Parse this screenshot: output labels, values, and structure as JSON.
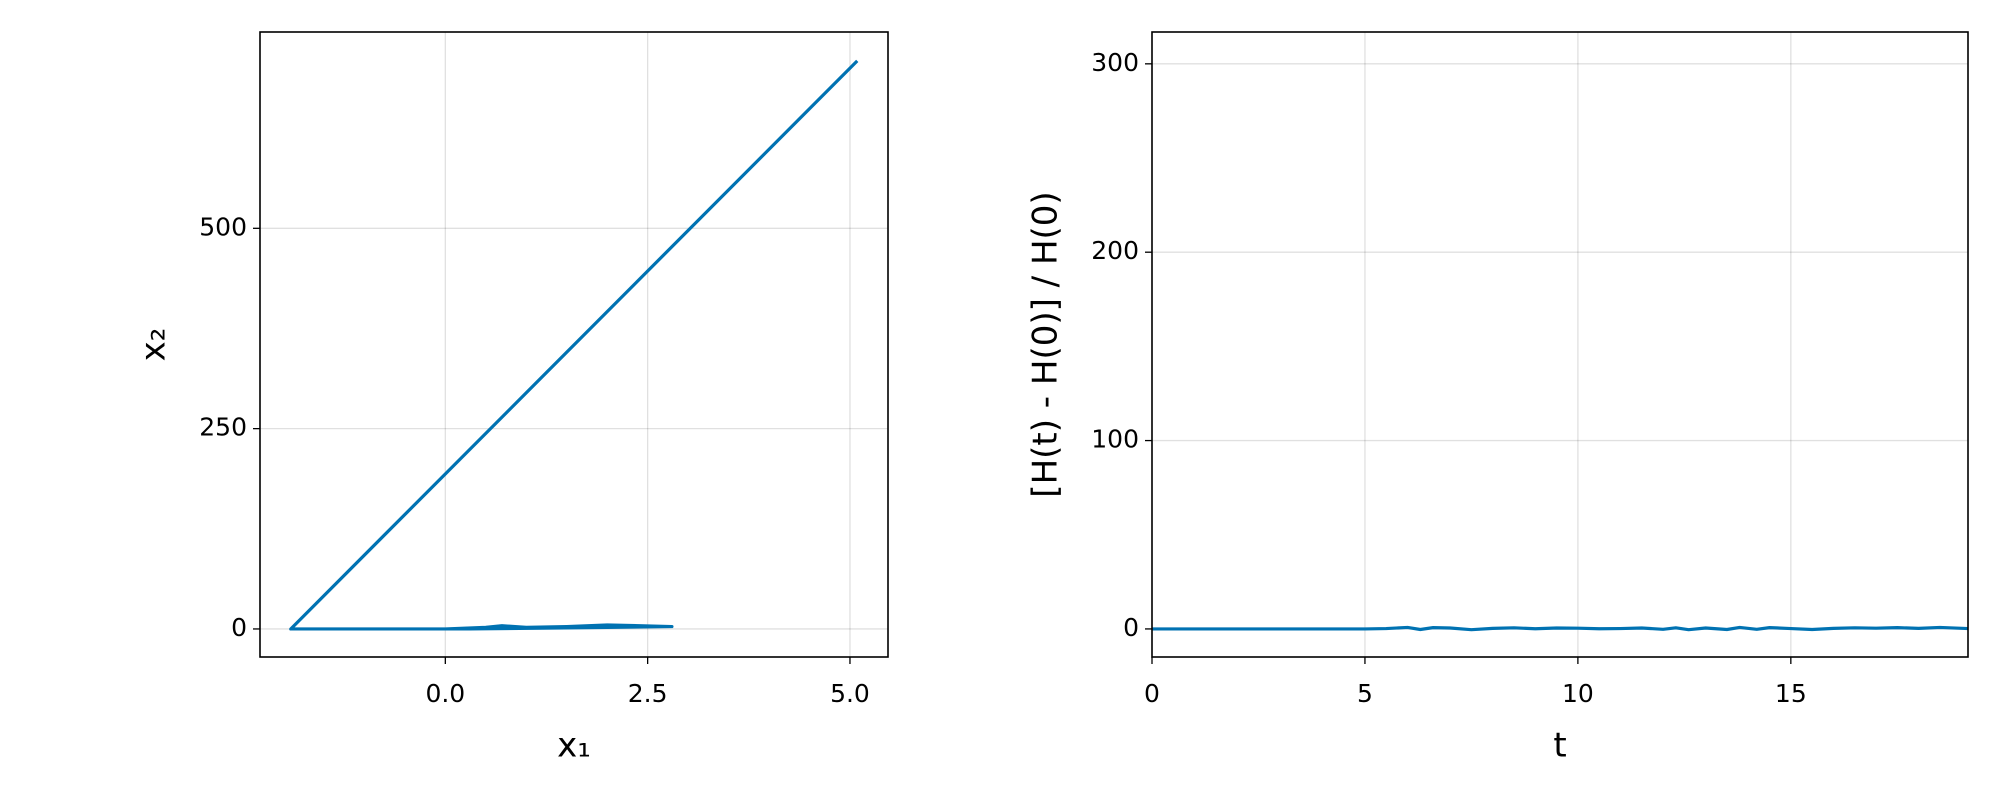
{
  "chart_data": [
    {
      "type": "line",
      "xlabel": "x₁",
      "ylabel": "x₂",
      "color": "#0072b2",
      "x": [
        0,
        0.5,
        0.7,
        1.0,
        1.5,
        2.0,
        2.8,
        2.0,
        1.2,
        0.3,
        -1.91,
        5.09
      ],
      "values": [
        0,
        2,
        4,
        2,
        3,
        5,
        3,
        2,
        1,
        0,
        0,
        709
      ],
      "xlim": [
        -2.29,
        5.47
      ],
      "ylim": [
        -35,
        745
      ],
      "xticks": [
        {
          "value": 0,
          "label": "0.0"
        },
        2.5,
        {
          "value": 5,
          "label": "5.0"
        }
      ],
      "yticks": [
        0,
        250,
        500
      ],
      "grid": true
    },
    {
      "type": "line",
      "xlabel": "t",
      "ylabel": "[H(t) - H(0)] / H(0)",
      "color": "#0072b2",
      "x": [
        0,
        1,
        2,
        3,
        4,
        5,
        5.5,
        6,
        6.3,
        6.6,
        7,
        7.5,
        8,
        8.5,
        9,
        9.5,
        10,
        10.5,
        11,
        11.5,
        12,
        12.3,
        12.6,
        13,
        13.5,
        13.8,
        14.2,
        14.5,
        15,
        15.5,
        16,
        16.5,
        17,
        17.5,
        18,
        18.5,
        19.16
      ],
      "values": [
        0,
        0,
        0,
        0,
        0,
        0,
        0.2,
        0.8,
        -0.3,
        0.7,
        0.5,
        -0.4,
        0.3,
        0.6,
        0.1,
        0.5,
        0.4,
        0.1,
        0.2,
        0.5,
        -0.2,
        0.6,
        -0.4,
        0.5,
        -0.3,
        0.8,
        -0.2,
        0.7,
        0.2,
        -0.3,
        0.3,
        0.6,
        0.4,
        0.7,
        0.3,
        0.8,
        0.2
      ],
      "xlim": [
        0,
        19.16
      ],
      "ylim": [
        -14.9,
        316.9
      ],
      "xticks": [
        0,
        5,
        10,
        15
      ],
      "yticks": [
        0,
        100,
        200,
        300
      ],
      "grid": true
    }
  ]
}
